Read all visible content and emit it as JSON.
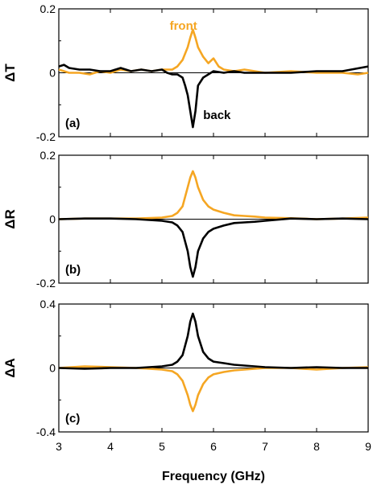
{
  "colors": {
    "front": "#F5A623",
    "back": "#000000",
    "axis": "#000000"
  },
  "xlabel": "Frequency (GHz)",
  "x_ticks": [
    "3",
    "4",
    "5",
    "6",
    "7",
    "8",
    "9"
  ],
  "chart_data": [
    {
      "type": "line",
      "panel_label": "(a)",
      "ylabel": "ΔT",
      "xlim": [
        3,
        9
      ],
      "ylim": [
        -0.2,
        0.2
      ],
      "y_ticks": [
        "0.2",
        "0",
        "-0.2"
      ],
      "zero_line": true,
      "annotations": [
        {
          "text": "front",
          "x": 5.15,
          "y": 0.135,
          "series": "front"
        },
        {
          "text": "back",
          "x": 5.8,
          "y": -0.145,
          "series": "back"
        }
      ],
      "series": [
        {
          "name": "front",
          "x": [
            3,
            3.2,
            3.4,
            3.6,
            3.8,
            4.0,
            4.2,
            4.4,
            4.6,
            4.8,
            5.0,
            5.2,
            5.3,
            5.4,
            5.5,
            5.55,
            5.6,
            5.65,
            5.7,
            5.8,
            5.9,
            6.0,
            6.1,
            6.2,
            6.4,
            6.6,
            6.8,
            7.0,
            7.5,
            8.0,
            8.5,
            8.8,
            9.0
          ],
          "y": [
            0.01,
            0.0,
            0.0,
            -0.005,
            0.005,
            0.0,
            0.01,
            0.005,
            0.01,
            0.005,
            0.01,
            0.01,
            0.02,
            0.04,
            0.08,
            0.11,
            0.135,
            0.11,
            0.08,
            0.05,
            0.03,
            0.045,
            0.02,
            0.01,
            0.005,
            0.01,
            0.005,
            0.0,
            0.005,
            0.0,
            0.0,
            -0.005,
            0.0
          ]
        },
        {
          "name": "back",
          "x": [
            3,
            3.1,
            3.2,
            3.4,
            3.6,
            3.8,
            4.0,
            4.2,
            4.4,
            4.6,
            4.8,
            5.0,
            5.1,
            5.2,
            5.3,
            5.4,
            5.45,
            5.5,
            5.55,
            5.6,
            5.65,
            5.7,
            5.8,
            5.9,
            6.0,
            6.2,
            6.4,
            6.6,
            7.0,
            7.5,
            8.0,
            8.5,
            9.0
          ],
          "y": [
            0.02,
            0.025,
            0.015,
            0.01,
            0.01,
            0.005,
            0.005,
            0.015,
            0.005,
            0.01,
            0.005,
            0.01,
            0.0,
            -0.005,
            -0.005,
            -0.015,
            -0.04,
            -0.07,
            -0.12,
            -0.17,
            -0.12,
            -0.04,
            -0.015,
            -0.005,
            0.005,
            0.0,
            0.005,
            0.0,
            0.0,
            0.0,
            0.005,
            0.005,
            0.02
          ]
        }
      ]
    },
    {
      "type": "line",
      "panel_label": "(b)",
      "ylabel": "ΔR",
      "xlim": [
        3,
        9
      ],
      "ylim": [
        -0.2,
        0.2
      ],
      "y_ticks": [
        "0.2",
        "0",
        "-0.2"
      ],
      "zero_line": true,
      "series": [
        {
          "name": "front",
          "x": [
            3,
            3.5,
            4.0,
            4.5,
            5.0,
            5.2,
            5.3,
            5.4,
            5.5,
            5.55,
            5.6,
            5.65,
            5.7,
            5.8,
            5.9,
            6.0,
            6.2,
            6.4,
            6.6,
            6.8,
            7.0,
            7.5,
            8.0,
            8.5,
            9.0
          ],
          "y": [
            0.0,
            0.002,
            0.002,
            0.002,
            0.005,
            0.01,
            0.02,
            0.04,
            0.1,
            0.13,
            0.15,
            0.13,
            0.1,
            0.06,
            0.04,
            0.03,
            0.02,
            0.012,
            0.01,
            0.008,
            0.005,
            0.003,
            0.0,
            0.002,
            0.005
          ]
        },
        {
          "name": "back",
          "x": [
            3,
            3.5,
            4.0,
            4.5,
            5.0,
            5.2,
            5.3,
            5.4,
            5.5,
            5.55,
            5.6,
            5.65,
            5.7,
            5.8,
            5.9,
            6.0,
            6.2,
            6.4,
            6.6,
            6.8,
            7.0,
            7.5,
            8.0,
            8.5,
            9.0
          ],
          "y": [
            0.0,
            0.002,
            0.002,
            0.0,
            -0.005,
            -0.01,
            -0.02,
            -0.04,
            -0.1,
            -0.15,
            -0.18,
            -0.15,
            -0.1,
            -0.06,
            -0.04,
            -0.03,
            -0.02,
            -0.012,
            -0.01,
            -0.008,
            -0.005,
            0.002,
            0.0,
            0.002,
            0.0
          ]
        }
      ]
    },
    {
      "type": "line",
      "panel_label": "(c)",
      "ylabel": "ΔA",
      "xlim": [
        3,
        9
      ],
      "ylim": [
        -0.4,
        0.4
      ],
      "y_ticks": [
        "0.4",
        "0",
        "-0.4"
      ],
      "zero_line": true,
      "series": [
        {
          "name": "front",
          "x": [
            3,
            3.5,
            4.0,
            4.5,
            5.0,
            5.2,
            5.3,
            5.4,
            5.5,
            5.55,
            5.6,
            5.65,
            5.7,
            5.8,
            5.9,
            6.0,
            6.2,
            6.4,
            6.6,
            6.8,
            7.0,
            7.5,
            8.0,
            8.5,
            9.0
          ],
          "y": [
            0.0,
            0.01,
            0.005,
            0.0,
            -0.01,
            -0.02,
            -0.04,
            -0.08,
            -0.17,
            -0.23,
            -0.27,
            -0.23,
            -0.17,
            -0.1,
            -0.06,
            -0.04,
            -0.025,
            -0.015,
            -0.01,
            -0.005,
            0.0,
            0.0,
            -0.01,
            0.0,
            0.005
          ]
        },
        {
          "name": "back",
          "x": [
            3,
            3.5,
            4.0,
            4.5,
            5.0,
            5.2,
            5.3,
            5.4,
            5.5,
            5.55,
            5.6,
            5.65,
            5.7,
            5.8,
            5.9,
            6.0,
            6.2,
            6.4,
            6.6,
            6.8,
            7.0,
            7.5,
            8.0,
            8.5,
            9.0
          ],
          "y": [
            0.0,
            -0.005,
            0.0,
            0.0,
            0.01,
            0.02,
            0.04,
            0.08,
            0.2,
            0.29,
            0.34,
            0.29,
            0.2,
            0.1,
            0.06,
            0.04,
            0.03,
            0.02,
            0.015,
            0.01,
            0.005,
            0.0,
            0.005,
            0.0,
            0.0
          ]
        }
      ]
    }
  ]
}
